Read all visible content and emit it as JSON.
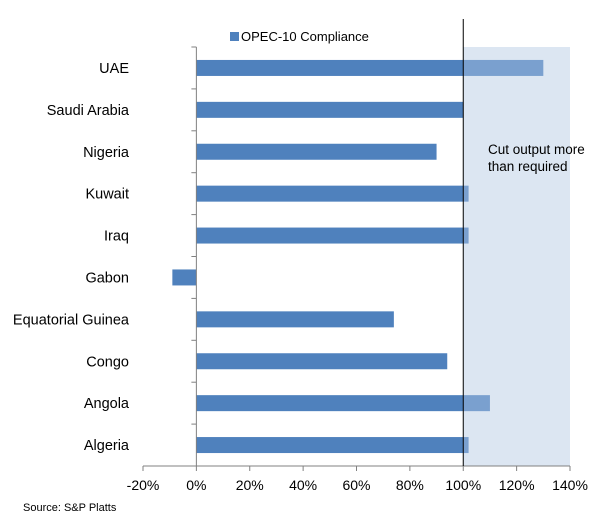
{
  "chart_data": {
    "type": "bar",
    "orientation": "horizontal",
    "title": "",
    "xlabel": "",
    "ylabel": "",
    "categories": [
      "UAE",
      "Saudi Arabia",
      "Nigeria",
      "Kuwait",
      "Iraq",
      "Gabon",
      "Equatorial Guinea",
      "Congo",
      "Angola",
      "Algeria"
    ],
    "series": [
      {
        "name": "OPEC-10 Compliance",
        "values": [
          130,
          100,
          90,
          102,
          102,
          -9,
          74,
          94,
          110,
          102
        ],
        "color": "#4f81bd"
      }
    ],
    "xlim": [
      -20,
      140
    ],
    "xticks": [
      -20,
      0,
      20,
      40,
      60,
      80,
      100,
      120,
      140
    ],
    "xtick_labels": [
      "-20%",
      "0%",
      "20%",
      "40%",
      "60%",
      "80%",
      "100%",
      "120%",
      "140%"
    ],
    "reference_line": 100,
    "shaded_region": {
      "from": 100,
      "to": 140,
      "color": "#dce6f2",
      "label_lines": [
        "Cut output more",
        "than required"
      ]
    },
    "bar_over_region_color": "#7aa0cf",
    "legend": {
      "position": "top-center"
    },
    "grid": false
  },
  "source": "Source: S&P Platts"
}
